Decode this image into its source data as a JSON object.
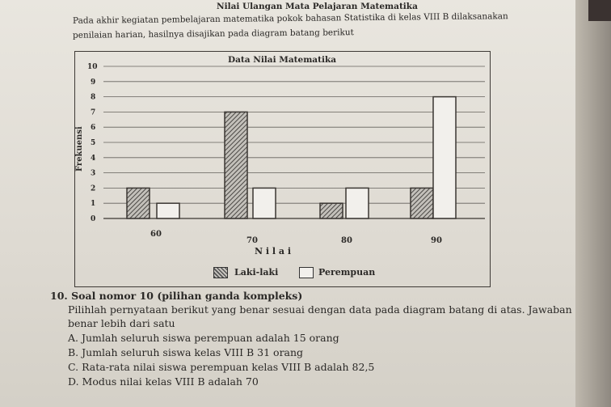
{
  "intro": {
    "line1": "Pada akhir kegiatan pembelajaran matematika pokok bahasan Statistika di kelas VIII B dilaksanakan",
    "line2": "penilaian harian, hasilnya disajikan pada diagram batang berikut",
    "heading": "Nilai Ulangan Mata Pelajaran Matematika"
  },
  "chart_data": {
    "type": "bar",
    "title": "Data Nilai Matematika",
    "xlabel": "N i l a i",
    "ylabel": "Frekuensi",
    "categories": [
      "60",
      "70",
      "80",
      "90"
    ],
    "series": [
      {
        "name": "Laki-laki",
        "values": [
          2,
          7,
          1,
          2
        ]
      },
      {
        "name": "Perempuan",
        "values": [
          1,
          2,
          2,
          8
        ]
      }
    ],
    "yticks": [
      "0",
      "1",
      "2",
      "3",
      "4",
      "5",
      "6",
      "7",
      "8",
      "9",
      "10"
    ],
    "ylim": [
      0,
      10
    ],
    "grid": true,
    "legend_position": "bottom"
  },
  "question": {
    "title": "10. Soal nomor 10 (pilihan ganda kompleks)",
    "instruction_line1": "Pilihlah pernyataan berikut yang benar sesuai dengan data pada diagram batang di atas. Jawaban",
    "instruction_line2": "benar lebih dari satu",
    "options": [
      "A.  Jumlah seluruh siswa perempuan adalah 15 orang",
      "B.  Jumlah seluruh siswa kelas VIII B 31 orang",
      "C.  Rata-rata nilai siswa perempuan kelas VIII B adalah 82,5",
      "D.  Modus  nilai kelas VIII B adalah 70"
    ]
  },
  "colors": {
    "laki_fill": "#8f8c88",
    "perempuan_fill": "#f2f0ec",
    "line": "#3a3632"
  }
}
